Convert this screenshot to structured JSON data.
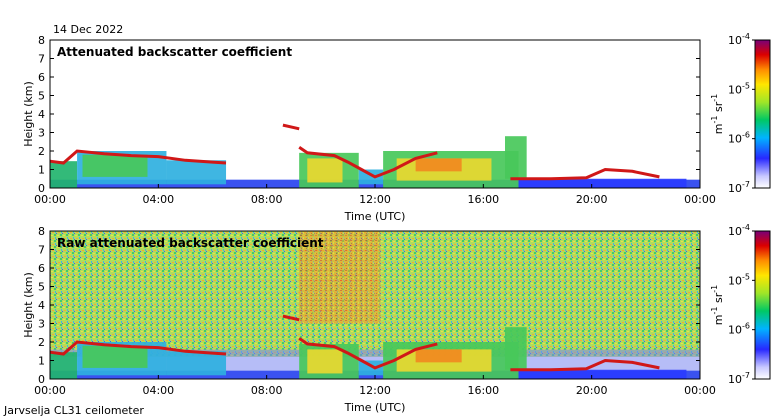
{
  "date": "14 Dec 2022",
  "footer": "Jarvselja CL31 ceilometer",
  "chart_data": [
    {
      "type": "heatmap",
      "title": "Attenuated backscatter coefficient",
      "xlabel": "Time (UTC)",
      "ylabel": "Height (km)",
      "xticks": [
        "00:00",
        "04:00",
        "08:00",
        "12:00",
        "16:00",
        "20:00",
        "00:00"
      ],
      "xlim_hours": [
        0,
        24
      ],
      "yticks": [
        0,
        1,
        2,
        3,
        4,
        5,
        6,
        7,
        8
      ],
      "ylim": [
        0,
        8
      ],
      "colorbar": {
        "label": "m-1 sr-1",
        "ticks": [
          "10-7",
          "10-6",
          "10-5",
          "10-4"
        ],
        "range": [
          1e-07,
          0.0001
        ],
        "scale": "log"
      },
      "cloud_base_layer_km": [
        [
          0.0,
          1.45
        ],
        [
          0.5,
          1.35
        ],
        [
          1.0,
          2.0
        ],
        [
          2.0,
          1.85
        ],
        [
          3.0,
          1.75
        ],
        [
          4.0,
          1.7
        ],
        [
          5.0,
          1.5
        ],
        [
          6.0,
          1.4
        ],
        [
          6.5,
          1.35
        ],
        [
          9.2,
          2.2
        ],
        [
          9.5,
          1.9
        ],
        [
          10.5,
          1.75
        ],
        [
          11.0,
          1.4
        ],
        [
          11.5,
          1.0
        ],
        [
          12.0,
          0.6
        ],
        [
          12.7,
          1.0
        ],
        [
          13.5,
          1.6
        ],
        [
          14.3,
          1.9
        ],
        [
          17.0,
          0.5
        ],
        [
          18.5,
          0.5
        ],
        [
          19.8,
          0.55
        ],
        [
          20.5,
          1.0
        ],
        [
          21.5,
          0.9
        ],
        [
          22.5,
          0.6
        ]
      ],
      "elevated_layer_km": [
        [
          8.6,
          3.4
        ],
        [
          9.2,
          3.2
        ]
      ]
    },
    {
      "type": "heatmap",
      "title": "Raw attenuated backscatter coefficient",
      "xlabel": "Time (UTC)",
      "ylabel": "Height (km)",
      "xticks": [
        "00:00",
        "04:00",
        "08:00",
        "12:00",
        "16:00",
        "20:00",
        "00:00"
      ],
      "xlim_hours": [
        0,
        24
      ],
      "yticks": [
        0,
        1,
        2,
        3,
        4,
        5,
        6,
        7,
        8
      ],
      "ylim": [
        0,
        8
      ],
      "colorbar": {
        "label": "m-1 sr-1",
        "ticks": [
          "10-7",
          "10-6",
          "10-5",
          "10-4"
        ],
        "range": [
          1e-07,
          0.0001
        ],
        "scale": "log"
      },
      "cloud_base_layer_km": [
        [
          0.0,
          1.45
        ],
        [
          0.5,
          1.35
        ],
        [
          1.0,
          2.0
        ],
        [
          2.0,
          1.85
        ],
        [
          3.0,
          1.75
        ],
        [
          4.0,
          1.7
        ],
        [
          5.0,
          1.5
        ],
        [
          6.0,
          1.4
        ],
        [
          6.5,
          1.35
        ],
        [
          9.2,
          2.2
        ],
        [
          9.5,
          1.9
        ],
        [
          10.5,
          1.75
        ],
        [
          11.0,
          1.4
        ],
        [
          11.5,
          1.0
        ],
        [
          12.0,
          0.6
        ],
        [
          12.7,
          1.0
        ],
        [
          13.5,
          1.6
        ],
        [
          14.3,
          1.9
        ],
        [
          17.0,
          0.5
        ],
        [
          18.5,
          0.5
        ],
        [
          19.8,
          0.55
        ],
        [
          20.5,
          1.0
        ],
        [
          21.5,
          0.9
        ],
        [
          22.5,
          0.6
        ]
      ],
      "elevated_layer_km": [
        [
          8.6,
          3.4
        ],
        [
          9.2,
          3.2
        ]
      ]
    }
  ]
}
